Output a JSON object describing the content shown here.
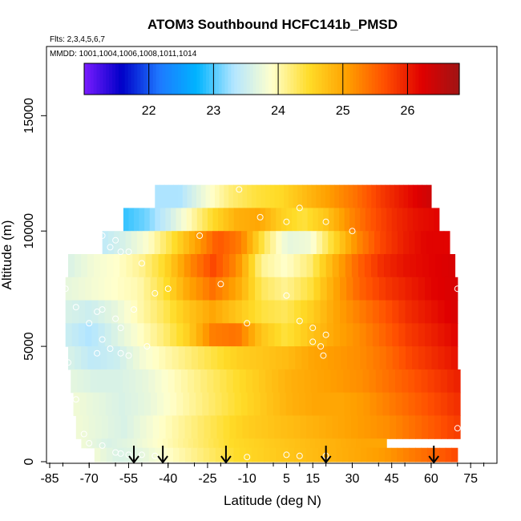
{
  "chart_data": {
    "type": "heatmap",
    "title": "ATOM3 Southbound HCFC141b_PMSD",
    "flights_label": "Flts: 2,3,4,5,6,7",
    "dates_label": "MMDD: 1001,1004,1006,1008,1011,1014",
    "xlabel": "Latitude (deg N)",
    "ylabel": "Altitude (m)",
    "xlim": [
      -85,
      85
    ],
    "ylim": [
      0,
      18000
    ],
    "x_ticks": [
      -85,
      -70,
      -55,
      -40,
      -25,
      -10,
      5,
      15,
      30,
      45,
      60,
      75
    ],
    "y_ticks": [
      0,
      5000,
      10000,
      15000
    ],
    "colorbar": {
      "range": [
        21,
        26.8
      ],
      "ticks": [
        22,
        23,
        24,
        25,
        26
      ],
      "colors": [
        "#7a1cff",
        "#0000c8",
        "#1e78ff",
        "#00b4ff",
        "#b4e6ff",
        "#ffffcc",
        "#ffdc28",
        "#ffa000",
        "#ff5000",
        "#e00000",
        "#a01414"
      ],
      "position": "top"
    },
    "grid": false,
    "altitude_bands_m": [
      {
        "top": 12000,
        "lat_min": -45,
        "lat_max": 60,
        "values": [
          23.3,
          23.3,
          23.8,
          24.2,
          24.4,
          24.5,
          24.8,
          25.1,
          25.4,
          25.8,
          26.1,
          26.4
        ]
      },
      {
        "top": 11000,
        "lat_min": -57,
        "lat_max": 63,
        "values": [
          22.9,
          23.1,
          23.5,
          24.0,
          24.5,
          24.9,
          25.0,
          24.6,
          24.4,
          24.7,
          25.2,
          25.6,
          25.9,
          26.1,
          26.2
        ]
      },
      {
        "top": 10000,
        "lat_min": -65,
        "lat_max": 67,
        "values": [
          23.4,
          23.6,
          23.9,
          24.4,
          25.0,
          25.6,
          25.3,
          24.3,
          23.7,
          23.8,
          24.5,
          25.2,
          25.7,
          26.0,
          26.2,
          26.2
        ]
      },
      {
        "top": 9000,
        "lat_min": -78,
        "lat_max": 69,
        "values": [
          23.6,
          23.8,
          23.9,
          24.1,
          24.5,
          25.2,
          25.7,
          25.2,
          24.1,
          23.9,
          24.2,
          24.9,
          25.5,
          25.9,
          26.1,
          26.2,
          26.3
        ]
      },
      {
        "top": 8000,
        "lat_min": -79,
        "lat_max": 70,
        "values": [
          23.7,
          23.8,
          23.9,
          24.0,
          24.4,
          25.0,
          25.4,
          25.0,
          24.3,
          24.1,
          24.4,
          25.0,
          25.5,
          25.8,
          26.0,
          26.2,
          26.3
        ]
      },
      {
        "top": 7000,
        "lat_min": -79,
        "lat_max": 70,
        "values": [
          23.6,
          23.5,
          23.7,
          24.0,
          24.3,
          24.7,
          25.0,
          24.7,
          24.4,
          24.3,
          24.6,
          25.0,
          25.3,
          25.6,
          25.9,
          26.1,
          26.3
        ]
      },
      {
        "top": 6000,
        "lat_min": -79,
        "lat_max": 70,
        "values": [
          23.5,
          23.3,
          23.6,
          23.9,
          24.2,
          24.6,
          25.3,
          25.4,
          24.7,
          24.4,
          24.7,
          25.0,
          25.2,
          25.5,
          25.8,
          26.0,
          26.2
        ]
      },
      {
        "top": 5000,
        "lat_min": -78,
        "lat_max": 70,
        "values": [
          23.6,
          23.4,
          23.5,
          23.8,
          24.0,
          24.2,
          24.4,
          24.6,
          24.7,
          24.8,
          25.0,
          25.1,
          25.2,
          25.4,
          25.7,
          25.9,
          26.1
        ]
      },
      {
        "top": 4000,
        "lat_min": -77,
        "lat_max": 71,
        "values": [
          23.7,
          23.6,
          23.6,
          23.7,
          23.9,
          24.1,
          24.3,
          24.5,
          24.7,
          24.9,
          25.0,
          25.1,
          25.2,
          25.4,
          25.6,
          25.8,
          26.0
        ]
      },
      {
        "top": 3000,
        "lat_min": -76,
        "lat_max": 71,
        "values": [
          23.8,
          23.7,
          23.6,
          23.7,
          23.9,
          24.1,
          24.3,
          24.5,
          24.7,
          24.9,
          25.0,
          25.0,
          25.1,
          25.3,
          25.5,
          25.7,
          25.9
        ]
      },
      {
        "top": 2000,
        "lat_min": -75,
        "lat_max": 71,
        "values": [
          23.8,
          23.7,
          23.6,
          23.8,
          24.0,
          24.2,
          24.4,
          24.6,
          24.7,
          24.8,
          24.9,
          25.0,
          25.1,
          25.2,
          25.4,
          25.6,
          25.8
        ]
      },
      {
        "top": 1000,
        "lat_min": -73,
        "lat_max": 43,
        "values": [
          23.8,
          23.6,
          23.7,
          23.9,
          24.1,
          24.3,
          24.5,
          24.6,
          24.7,
          24.8,
          24.9,
          25.0,
          25.0
        ]
      },
      {
        "top": 600,
        "lat_min": -68,
        "lat_max": 70,
        "values": [
          23.8,
          23.6,
          23.7,
          23.9,
          24.1,
          24.3,
          24.5,
          24.6,
          24.7,
          24.8,
          24.9,
          25.0,
          25.1,
          25.3,
          25.5,
          25.7
        ]
      }
    ],
    "sample_points": [
      [
        -68,
        10000
      ],
      [
        -65,
        9800
      ],
      [
        -62,
        9300
      ],
      [
        -60,
        9600
      ],
      [
        -58,
        9100
      ],
      [
        -55,
        9100
      ],
      [
        -50,
        8600
      ],
      [
        -63,
        11100
      ],
      [
        -28,
        9800
      ],
      [
        -13,
        11800
      ],
      [
        -5,
        10600
      ],
      [
        5,
        10400
      ],
      [
        10,
        11000
      ],
      [
        20,
        10400
      ],
      [
        30,
        10000
      ],
      [
        62,
        12000
      ],
      [
        -78,
        10000
      ],
      [
        -75,
        9900
      ],
      [
        -75,
        6700
      ],
      [
        -70,
        6000
      ],
      [
        -67,
        6500
      ],
      [
        -65,
        6600
      ],
      [
        -60,
        6200
      ],
      [
        -58,
        5800
      ],
      [
        -53,
        6600
      ],
      [
        -48,
        5000
      ],
      [
        -45,
        7300
      ],
      [
        -40,
        7500
      ],
      [
        -20,
        7700
      ],
      [
        -10,
        6000
      ],
      [
        5,
        7200
      ],
      [
        10,
        6100
      ],
      [
        15,
        5800
      ],
      [
        20,
        5500
      ],
      [
        15,
        5200
      ],
      [
        18,
        5000
      ],
      [
        19,
        4600
      ],
      [
        -65,
        5300
      ],
      [
        -67,
        4700
      ],
      [
        -62,
        4900
      ],
      [
        -58,
        4700
      ],
      [
        -55,
        4600
      ],
      [
        -80,
        4400
      ],
      [
        -78,
        4300
      ],
      [
        -75,
        2700
      ],
      [
        -72,
        1200
      ],
      [
        -70,
        800
      ],
      [
        -65,
        700
      ],
      [
        -60,
        400
      ],
      [
        -58,
        350
      ],
      [
        -55,
        300
      ],
      [
        -50,
        300
      ],
      [
        -45,
        250
      ],
      [
        -10,
        200
      ],
      [
        5,
        300
      ],
      [
        10,
        250
      ],
      [
        20,
        250
      ],
      [
        70,
        1450
      ],
      [
        70,
        7500
      ],
      [
        -79,
        7500
      ]
    ],
    "flight_markers_lat": [
      -53,
      -42,
      -18,
      20,
      61
    ]
  }
}
